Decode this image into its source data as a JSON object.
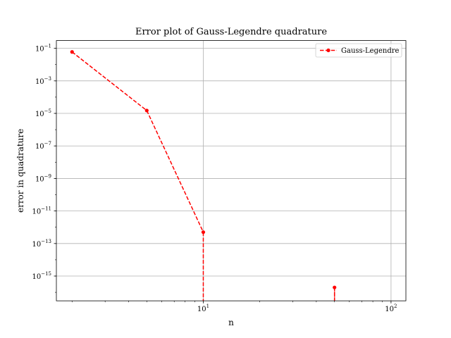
{
  "chart_data": {
    "type": "line",
    "title": "Error plot of Gauss-Legendre quadrature",
    "xlabel": "n",
    "ylabel": "error in quadrature",
    "xscale": "log",
    "yscale": "log",
    "xlim": [
      1.65,
      120
    ],
    "ylim": [
      3e-17,
      0.3
    ],
    "x_major_ticks": [
      {
        "value": 10,
        "base": "10",
        "exp": "1"
      },
      {
        "value": 100,
        "base": "10",
        "exp": "2"
      }
    ],
    "y_major_ticks": [
      {
        "value": 0.1,
        "base": "10",
        "exp": "−1"
      },
      {
        "value": 0.001,
        "base": "10",
        "exp": "−3"
      },
      {
        "value": 1e-05,
        "base": "10",
        "exp": "−5"
      },
      {
        "value": 1e-07,
        "base": "10",
        "exp": "−7"
      },
      {
        "value": 1e-09,
        "base": "10",
        "exp": "−9"
      },
      {
        "value": 1e-11,
        "base": "10",
        "exp": "−11"
      },
      {
        "value": 1e-13,
        "base": "10",
        "exp": "−13"
      },
      {
        "value": 1e-15,
        "base": "10",
        "exp": "−15"
      }
    ],
    "grid": true,
    "legend_position": "top-right",
    "series": [
      {
        "name": "Gauss-Legendre",
        "color": "#ff0000",
        "linestyle": "dashed",
        "marker": "circle",
        "points": [
          {
            "x": 2,
            "y": 0.06
          },
          {
            "x": 5,
            "y": 1.5e-05
          },
          {
            "x": 10,
            "y": 5e-13
          },
          {
            "x": 20,
            "y": 0
          },
          {
            "x": 50,
            "y": 2e-16
          },
          {
            "x": 100,
            "y": 0
          }
        ]
      }
    ]
  }
}
